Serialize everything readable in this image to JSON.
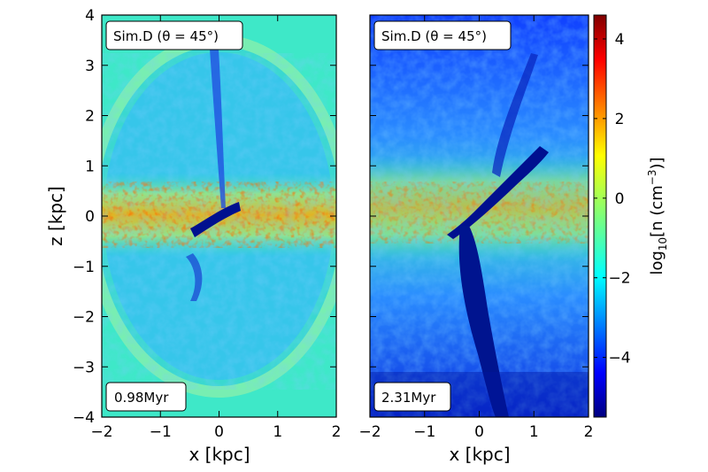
{
  "chart_data": {
    "type": "heatmap",
    "panels": [
      {
        "label": "Sim.D (θ = 45°)",
        "time": "0.98Myr",
        "xlabel": "x [kpc]",
        "ylabel": "z [kpc]",
        "xlim": [
          -2,
          2
        ],
        "ylim": [
          -4,
          4
        ],
        "xticks": [
          "−2",
          "−1",
          "0",
          "1",
          "2"
        ],
        "yticks": [
          "−4",
          "−3",
          "−2",
          "−1",
          "0",
          "1",
          "2",
          "3",
          "4"
        ]
      },
      {
        "label": "Sim.D (θ = 45°)",
        "time": "2.31Myr",
        "xlabel": "x [kpc]",
        "xlim": [
          -2,
          2
        ],
        "ylim": [
          -4,
          4
        ],
        "xticks": [
          "−2",
          "−1",
          "0",
          "1",
          "2"
        ]
      }
    ],
    "colorbar": {
      "label_main": "log",
      "label_sub": "10",
      "label_rest": "[n (cm",
      "label_exp": "−3",
      "label_end": ")]",
      "range": [
        -5.5,
        4.6
      ],
      "ticks": [
        "−4",
        "−2",
        "0",
        "2",
        "4"
      ],
      "colormap": "jet"
    }
  }
}
